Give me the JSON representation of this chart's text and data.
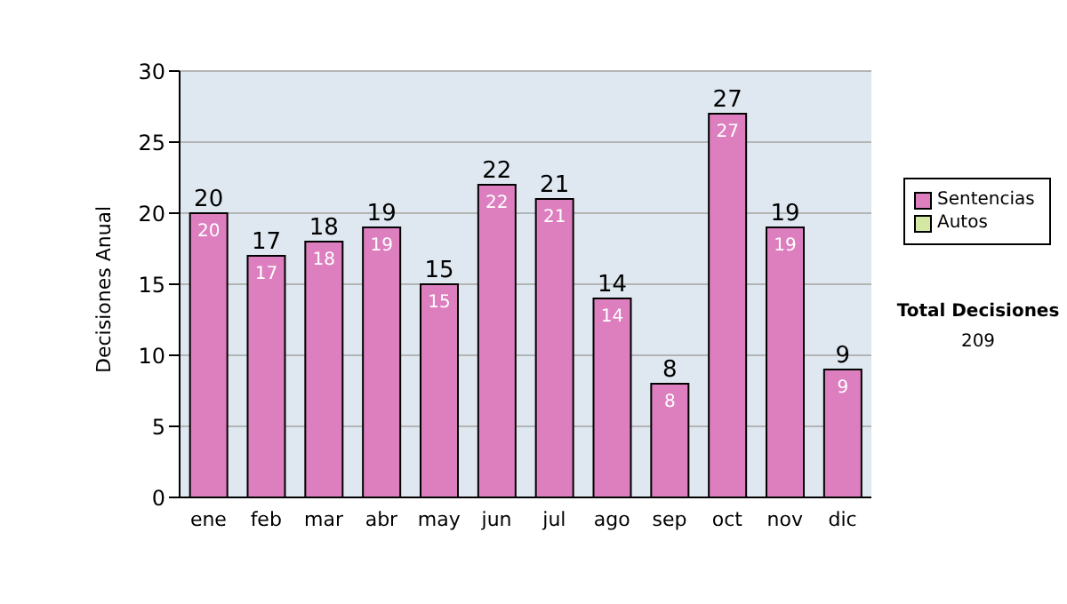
{
  "chart_data": {
    "type": "bar",
    "stacked": true,
    "ylabel": "Decisiones Anual",
    "categories": [
      "ene",
      "feb",
      "mar",
      "abr",
      "may",
      "jun",
      "jul",
      "ago",
      "sep",
      "oct",
      "nov",
      "dic"
    ],
    "series": [
      {
        "name": "Sentencias",
        "color": "#dd7fbf",
        "values": [
          20,
          17,
          18,
          19,
          15,
          22,
          21,
          14,
          8,
          27,
          19,
          9
        ],
        "value_labels": [
          "20",
          "17",
          "18",
          "19",
          "15",
          "22",
          "21",
          "14",
          "8",
          "27",
          "19",
          "9"
        ]
      },
      {
        "name": "Autos",
        "color": "#d4e8a4",
        "values": [
          0,
          0,
          0,
          0,
          0,
          0,
          0,
          0,
          0,
          0,
          0,
          0
        ],
        "value_labels": [
          null,
          null,
          null,
          null,
          null,
          null,
          null,
          null,
          null,
          null,
          null,
          null
        ]
      }
    ],
    "totals": [
      "20",
      "17",
      "18",
      "19",
      "15",
      "22",
      "21",
      "14",
      "8",
      "27",
      "19",
      "9"
    ],
    "ylim": [
      0,
      30
    ],
    "yticks": [
      0,
      5,
      10,
      15,
      20,
      25,
      30
    ],
    "grid": "y",
    "legend": "right",
    "annotations": [
      "Total Decisiones",
      "209"
    ]
  }
}
